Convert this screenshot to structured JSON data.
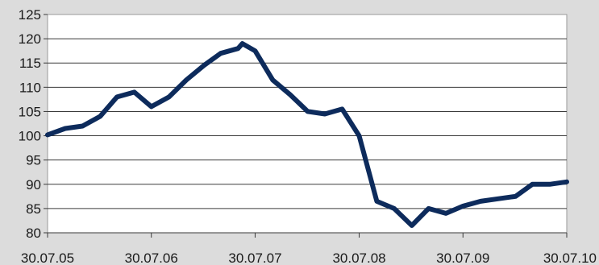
{
  "chart_data": {
    "type": "line",
    "title": "",
    "xlabel": "",
    "ylabel": "",
    "ylim": [
      80,
      125
    ],
    "yticks": [
      80,
      85,
      90,
      95,
      100,
      105,
      110,
      115,
      120,
      125
    ],
    "xticks": [
      "30.07.05",
      "30.07.06",
      "30.07.07",
      "30.07.08",
      "30.07.09",
      "30.07.10"
    ],
    "grid": true,
    "legend": "none",
    "series": [
      {
        "color": "#0d2b5c",
        "x": [
          "30.07.05",
          "30.09.05",
          "30.11.05",
          "31.01.06",
          "31.03.06",
          "31.05.06",
          "30.07.06",
          "30.09.06",
          "30.11.06",
          "31.01.07",
          "31.03.07",
          "31.05.07",
          "15.06.07",
          "30.07.07",
          "30.09.07",
          "30.11.07",
          "31.01.08",
          "31.03.08",
          "31.05.08",
          "30.07.08",
          "30.09.08",
          "30.11.08",
          "31.01.09",
          "31.03.09",
          "31.05.09",
          "30.07.09",
          "30.09.09",
          "30.11.09",
          "31.01.10",
          "31.03.10",
          "31.05.10",
          "30.07.10"
        ],
        "y": [
          100.2,
          101.5,
          102.0,
          104.0,
          108.0,
          109.0,
          106.0,
          108.0,
          111.5,
          114.5,
          117.0,
          118.0,
          119.0,
          117.5,
          111.5,
          108.5,
          105.0,
          104.5,
          105.5,
          100.0,
          86.5,
          85.0,
          81.5,
          85.0,
          84.0,
          85.5,
          86.5,
          87.0,
          87.5,
          90.0,
          90.0,
          90.5
        ]
      }
    ]
  }
}
